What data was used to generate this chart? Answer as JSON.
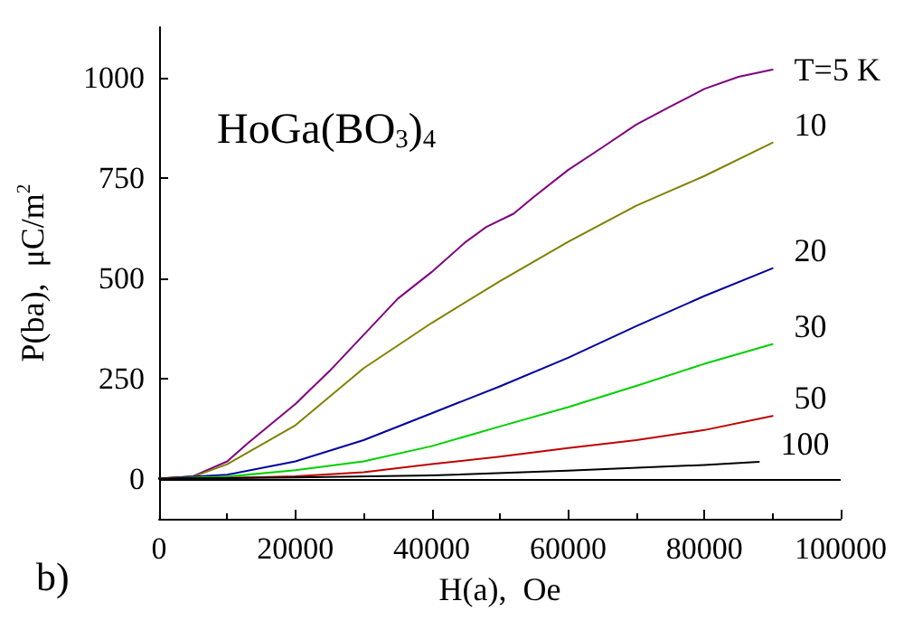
{
  "chart_data": {
    "type": "line",
    "xlabel": "H(a),  Oe",
    "ylabel": "P(ba),  μC/m$^{2}$",
    "annotations": [
      "HoGa(BO$_{3}$)$_{4}$",
      "b)"
    ],
    "xlim": [
      0,
      100000
    ],
    "xticks": [
      0,
      20000,
      40000,
      60000,
      80000,
      100000
    ],
    "ylim": [
      -100,
      1125
    ],
    "yticks": [
      0,
      250,
      500,
      750,
      1000
    ],
    "grid": false,
    "legend": false,
    "marker": "none",
    "line_style": "solid",
    "ref_lines": [
      {
        "axis": "y",
        "value": 0,
        "color": "#000000"
      }
    ],
    "series": [
      {
        "name": "T=5 K",
        "color": "#800080",
        "x": [
          0,
          5000,
          10000,
          13000,
          20000,
          25000,
          30000,
          35000,
          40000,
          45000,
          48000,
          52000,
          55000,
          60000,
          65000,
          70000,
          75000,
          80000,
          85000,
          90000
        ],
        "values": [
          0,
          6,
          43,
          88,
          186,
          268,
          358,
          448,
          515,
          590,
          627,
          660,
          702,
          769,
          825,
          882,
          927,
          971,
          1001,
          1019
        ]
      },
      {
        "name": "10",
        "color": "#808000",
        "x": [
          0,
          5000,
          10000,
          20000,
          30000,
          40000,
          50000,
          60000,
          70000,
          75000,
          80000,
          90000
        ],
        "values": [
          0,
          5,
          36,
          133,
          275,
          388,
          492,
          590,
          680,
          717,
          754,
          837
        ]
      },
      {
        "name": "20",
        "color": "#0000a0",
        "x": [
          0,
          10000,
          20000,
          30000,
          40000,
          50000,
          60000,
          70000,
          80000,
          90000
        ],
        "values": [
          0,
          10,
          43,
          96,
          163,
          230,
          301,
          380,
          455,
          524
        ]
      },
      {
        "name": "30",
        "color": "#00d000",
        "x": [
          0,
          10000,
          20000,
          30000,
          40000,
          50000,
          60000,
          70000,
          80000,
          90000
        ],
        "values": [
          0,
          5,
          21,
          43,
          81,
          130,
          178,
          231,
          286,
          335
        ]
      },
      {
        "name": "50",
        "color": "#c00000",
        "x": [
          0,
          10000,
          20000,
          30000,
          40000,
          50000,
          60000,
          70000,
          80000,
          90000
        ],
        "values": [
          0,
          2,
          6,
          16,
          36,
          55,
          76,
          96,
          121,
          156
        ]
      },
      {
        "name": "100",
        "color": "#000000",
        "x": [
          0,
          20000,
          40000,
          60000,
          80000,
          88000
        ],
        "values": [
          0,
          3,
          8,
          20,
          34,
          42
        ]
      }
    ]
  }
}
